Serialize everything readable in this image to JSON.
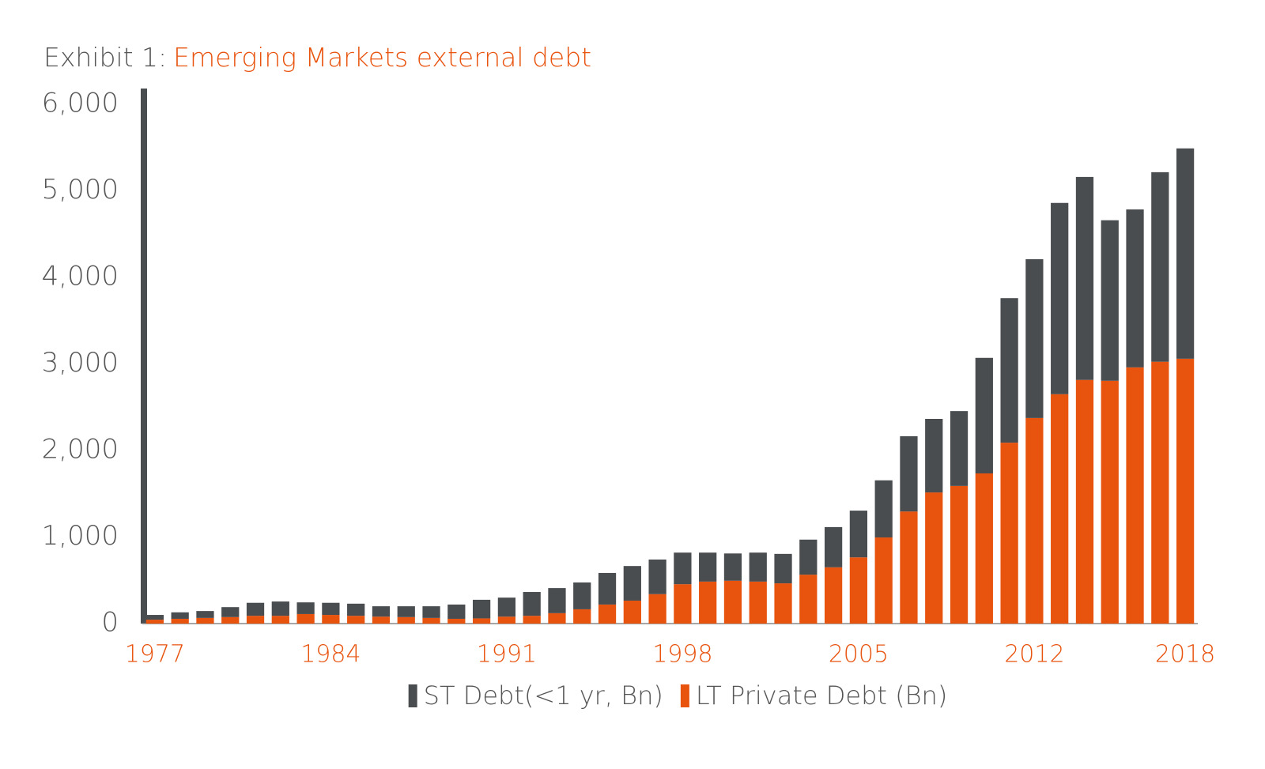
{
  "chart_data": {
    "type": "bar",
    "stacked": true,
    "title_prefix": "Exhibit 1:",
    "title": "Emerging Markets external debt",
    "categories": [
      "1977",
      null,
      null,
      null,
      null,
      null,
      null,
      "1984",
      null,
      null,
      null,
      null,
      null,
      null,
      "1991",
      null,
      null,
      null,
      null,
      null,
      null,
      "1998",
      null,
      null,
      null,
      null,
      null,
      null,
      "2005",
      null,
      null,
      null,
      null,
      null,
      null,
      "2012",
      null,
      null,
      null,
      null,
      null,
      "2018"
    ],
    "series": [
      {
        "name": "ST Debt(<1 yr, Bn)",
        "color": "#4a4d50",
        "values": [
          55,
          75,
          80,
          115,
          150,
          165,
          135,
          140,
          140,
          120,
          125,
          135,
          165,
          215,
          220,
          275,
          290,
          310,
          365,
          400,
          400,
          365,
          335,
          315,
          335,
          340,
          405,
          465,
          540,
          660,
          870,
          850,
          865,
          1335,
          1670,
          1835,
          2210,
          2345,
          1855,
          1825,
          2190,
          2430
        ]
      },
      {
        "name": "LT Private Debt (Bn)",
        "color": "#e8530e",
        "values": [
          45,
          55,
          65,
          75,
          90,
          90,
          110,
          100,
          90,
          80,
          75,
          65,
          55,
          60,
          80,
          90,
          120,
          165,
          220,
          265,
          340,
          455,
          485,
          495,
          485,
          465,
          565,
          650,
          765,
          995,
          1295,
          1515,
          1590,
          1735,
          2090,
          2375,
          2650,
          2815,
          2805,
          2960,
          3025,
          3060
        ]
      }
    ],
    "ylim": [
      0,
      6200
    ],
    "yticks": [
      0,
      {
        "value": 1000,
        "label": "1,000"
      },
      {
        "value": 2000,
        "label": "2,000"
      },
      {
        "value": 3000,
        "label": "3,000"
      },
      {
        "value": 4000,
        "label": "4,000"
      },
      {
        "value": 5000,
        "label": "5,000"
      },
      {
        "value": 6000,
        "label": "6,000"
      }
    ],
    "grid": false,
    "legend": "bottom"
  }
}
